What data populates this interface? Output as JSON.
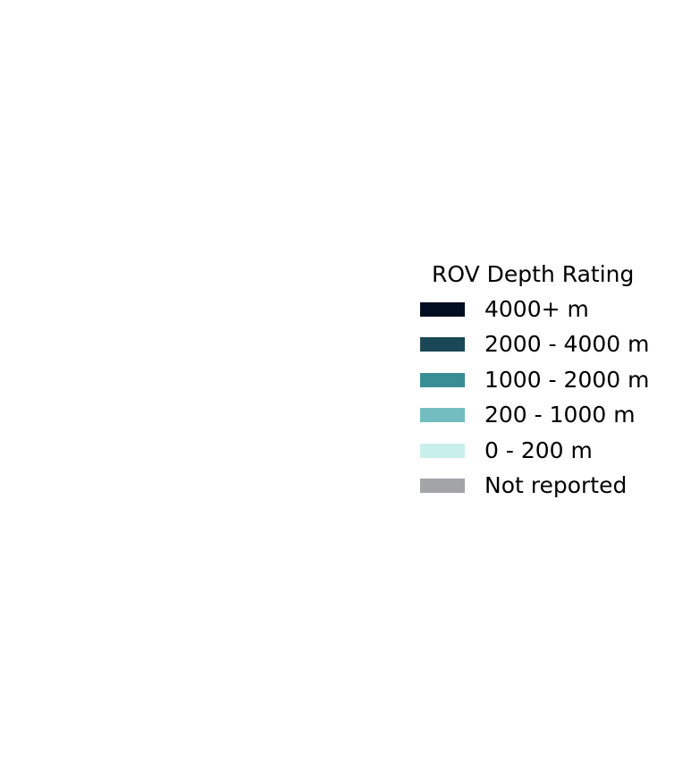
{
  "legend": {
    "title": "ROV Depth Rating",
    "items": [
      {
        "label": "4000+ m",
        "color": "#030d21"
      },
      {
        "label": "2000 - 4000 m",
        "color": "#1a4856"
      },
      {
        "label": "1000 - 2000 m",
        "color": "#398e95"
      },
      {
        "label": "200 - 1000 m",
        "color": "#73bdc0"
      },
      {
        "label": "0 - 200 m",
        "color": "#c9efea"
      },
      {
        "label": "Not reported",
        "color": "#a2a4a6"
      }
    ]
  }
}
